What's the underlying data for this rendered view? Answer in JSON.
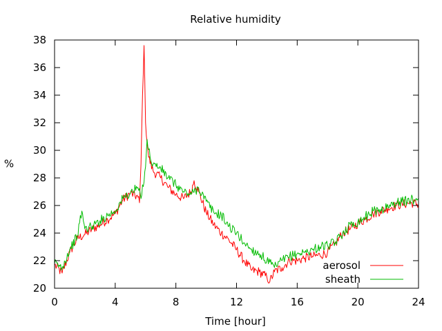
{
  "chart_data": {
    "type": "line",
    "title": "Relative humidity",
    "xlabel": "Time [hour]",
    "ylabel": "%",
    "xlim": [
      0,
      24
    ],
    "ylim": [
      20,
      38
    ],
    "xticks": [
      "0",
      "4",
      "8",
      "12",
      "16",
      "20",
      "24"
    ],
    "yticks": [
      "20",
      "22",
      "24",
      "26",
      "28",
      "30",
      "32",
      "34",
      "36",
      "38"
    ],
    "grid": false,
    "legend_position": "bottom-right",
    "series": [
      {
        "name": "aerosol",
        "color": "#ff0000",
        "points": [
          [
            0,
            21.7
          ],
          [
            0.5,
            21.1
          ],
          [
            1,
            22.6
          ],
          [
            1.5,
            23.6
          ],
          [
            2,
            23.9
          ],
          [
            2.5,
            24.3
          ],
          [
            3,
            24.6
          ],
          [
            3.5,
            25.0
          ],
          [
            4,
            25.4
          ],
          [
            4.5,
            26.4
          ],
          [
            5,
            26.9
          ],
          [
            5.5,
            26.6
          ],
          [
            5.6,
            26.2
          ],
          [
            5.7,
            29.0
          ],
          [
            5.8,
            34.0
          ],
          [
            5.9,
            37.6
          ],
          [
            6,
            32.0
          ],
          [
            6.2,
            29.5
          ],
          [
            6.5,
            28.5
          ],
          [
            7,
            28.0
          ],
          [
            7.5,
            27.3
          ],
          [
            8,
            26.8
          ],
          [
            8.5,
            26.5
          ],
          [
            9,
            27.0
          ],
          [
            9.2,
            27.8
          ],
          [
            9.5,
            27.0
          ],
          [
            10,
            25.5
          ],
          [
            10.5,
            24.6
          ],
          [
            11,
            24.0
          ],
          [
            11.5,
            23.5
          ],
          [
            12,
            22.8
          ],
          [
            12.5,
            22.0
          ],
          [
            13,
            21.3
          ],
          [
            13.5,
            21.2
          ],
          [
            14,
            20.8
          ],
          [
            14.2,
            20.5
          ],
          [
            14.5,
            21.2
          ],
          [
            15,
            21.5
          ],
          [
            15.5,
            22.0
          ],
          [
            16,
            22.0
          ],
          [
            16.5,
            22.2
          ],
          [
            17,
            22.3
          ],
          [
            17.5,
            22.4
          ],
          [
            18,
            22.6
          ],
          [
            18.5,
            23.2
          ],
          [
            19,
            24.0
          ],
          [
            19.5,
            24.3
          ],
          [
            20,
            24.7
          ],
          [
            20.5,
            25.0
          ],
          [
            21,
            25.4
          ],
          [
            21.5,
            25.6
          ],
          [
            22,
            25.8
          ],
          [
            22.5,
            26.0
          ],
          [
            23,
            26.1
          ],
          [
            23.5,
            26.2
          ],
          [
            24,
            26.1
          ]
        ]
      },
      {
        "name": "sheath",
        "color": "#00bb00",
        "points": [
          [
            0,
            21.8
          ],
          [
            0.5,
            21.5
          ],
          [
            1,
            22.8
          ],
          [
            1.5,
            23.8
          ],
          [
            1.8,
            25.6
          ],
          [
            2,
            24.3
          ],
          [
            2.5,
            24.5
          ],
          [
            3,
            24.9
          ],
          [
            3.5,
            25.3
          ],
          [
            4,
            25.6
          ],
          [
            4.5,
            26.5
          ],
          [
            5,
            26.9
          ],
          [
            5.5,
            27.3
          ],
          [
            5.7,
            26.5
          ],
          [
            6,
            28.8
          ],
          [
            6.1,
            30.8
          ],
          [
            6.3,
            29.5
          ],
          [
            6.5,
            29.0
          ],
          [
            7,
            28.7
          ],
          [
            7.5,
            28.0
          ],
          [
            8,
            27.5
          ],
          [
            8.5,
            27.0
          ],
          [
            9,
            26.8
          ],
          [
            9.5,
            27.3
          ],
          [
            10,
            26.3
          ],
          [
            10.5,
            25.5
          ],
          [
            11,
            25.3
          ],
          [
            11.5,
            24.5
          ],
          [
            12,
            24.0
          ],
          [
            12.5,
            23.3
          ],
          [
            13,
            22.8
          ],
          [
            13.5,
            22.5
          ],
          [
            14,
            22.0
          ],
          [
            14.5,
            21.5
          ],
          [
            15,
            22.0
          ],
          [
            15.5,
            22.3
          ],
          [
            16,
            22.5
          ],
          [
            16.5,
            22.6
          ],
          [
            17,
            22.8
          ],
          [
            17.5,
            23.0
          ],
          [
            18,
            23.1
          ],
          [
            18.5,
            23.3
          ],
          [
            19,
            24.0
          ],
          [
            19.5,
            24.6
          ],
          [
            20,
            24.8
          ],
          [
            20.5,
            25.2
          ],
          [
            21,
            25.6
          ],
          [
            21.5,
            25.7
          ],
          [
            22,
            25.9
          ],
          [
            22.5,
            26.2
          ],
          [
            23,
            26.3
          ],
          [
            23.5,
            26.4
          ],
          [
            24,
            26.5
          ]
        ]
      }
    ]
  }
}
